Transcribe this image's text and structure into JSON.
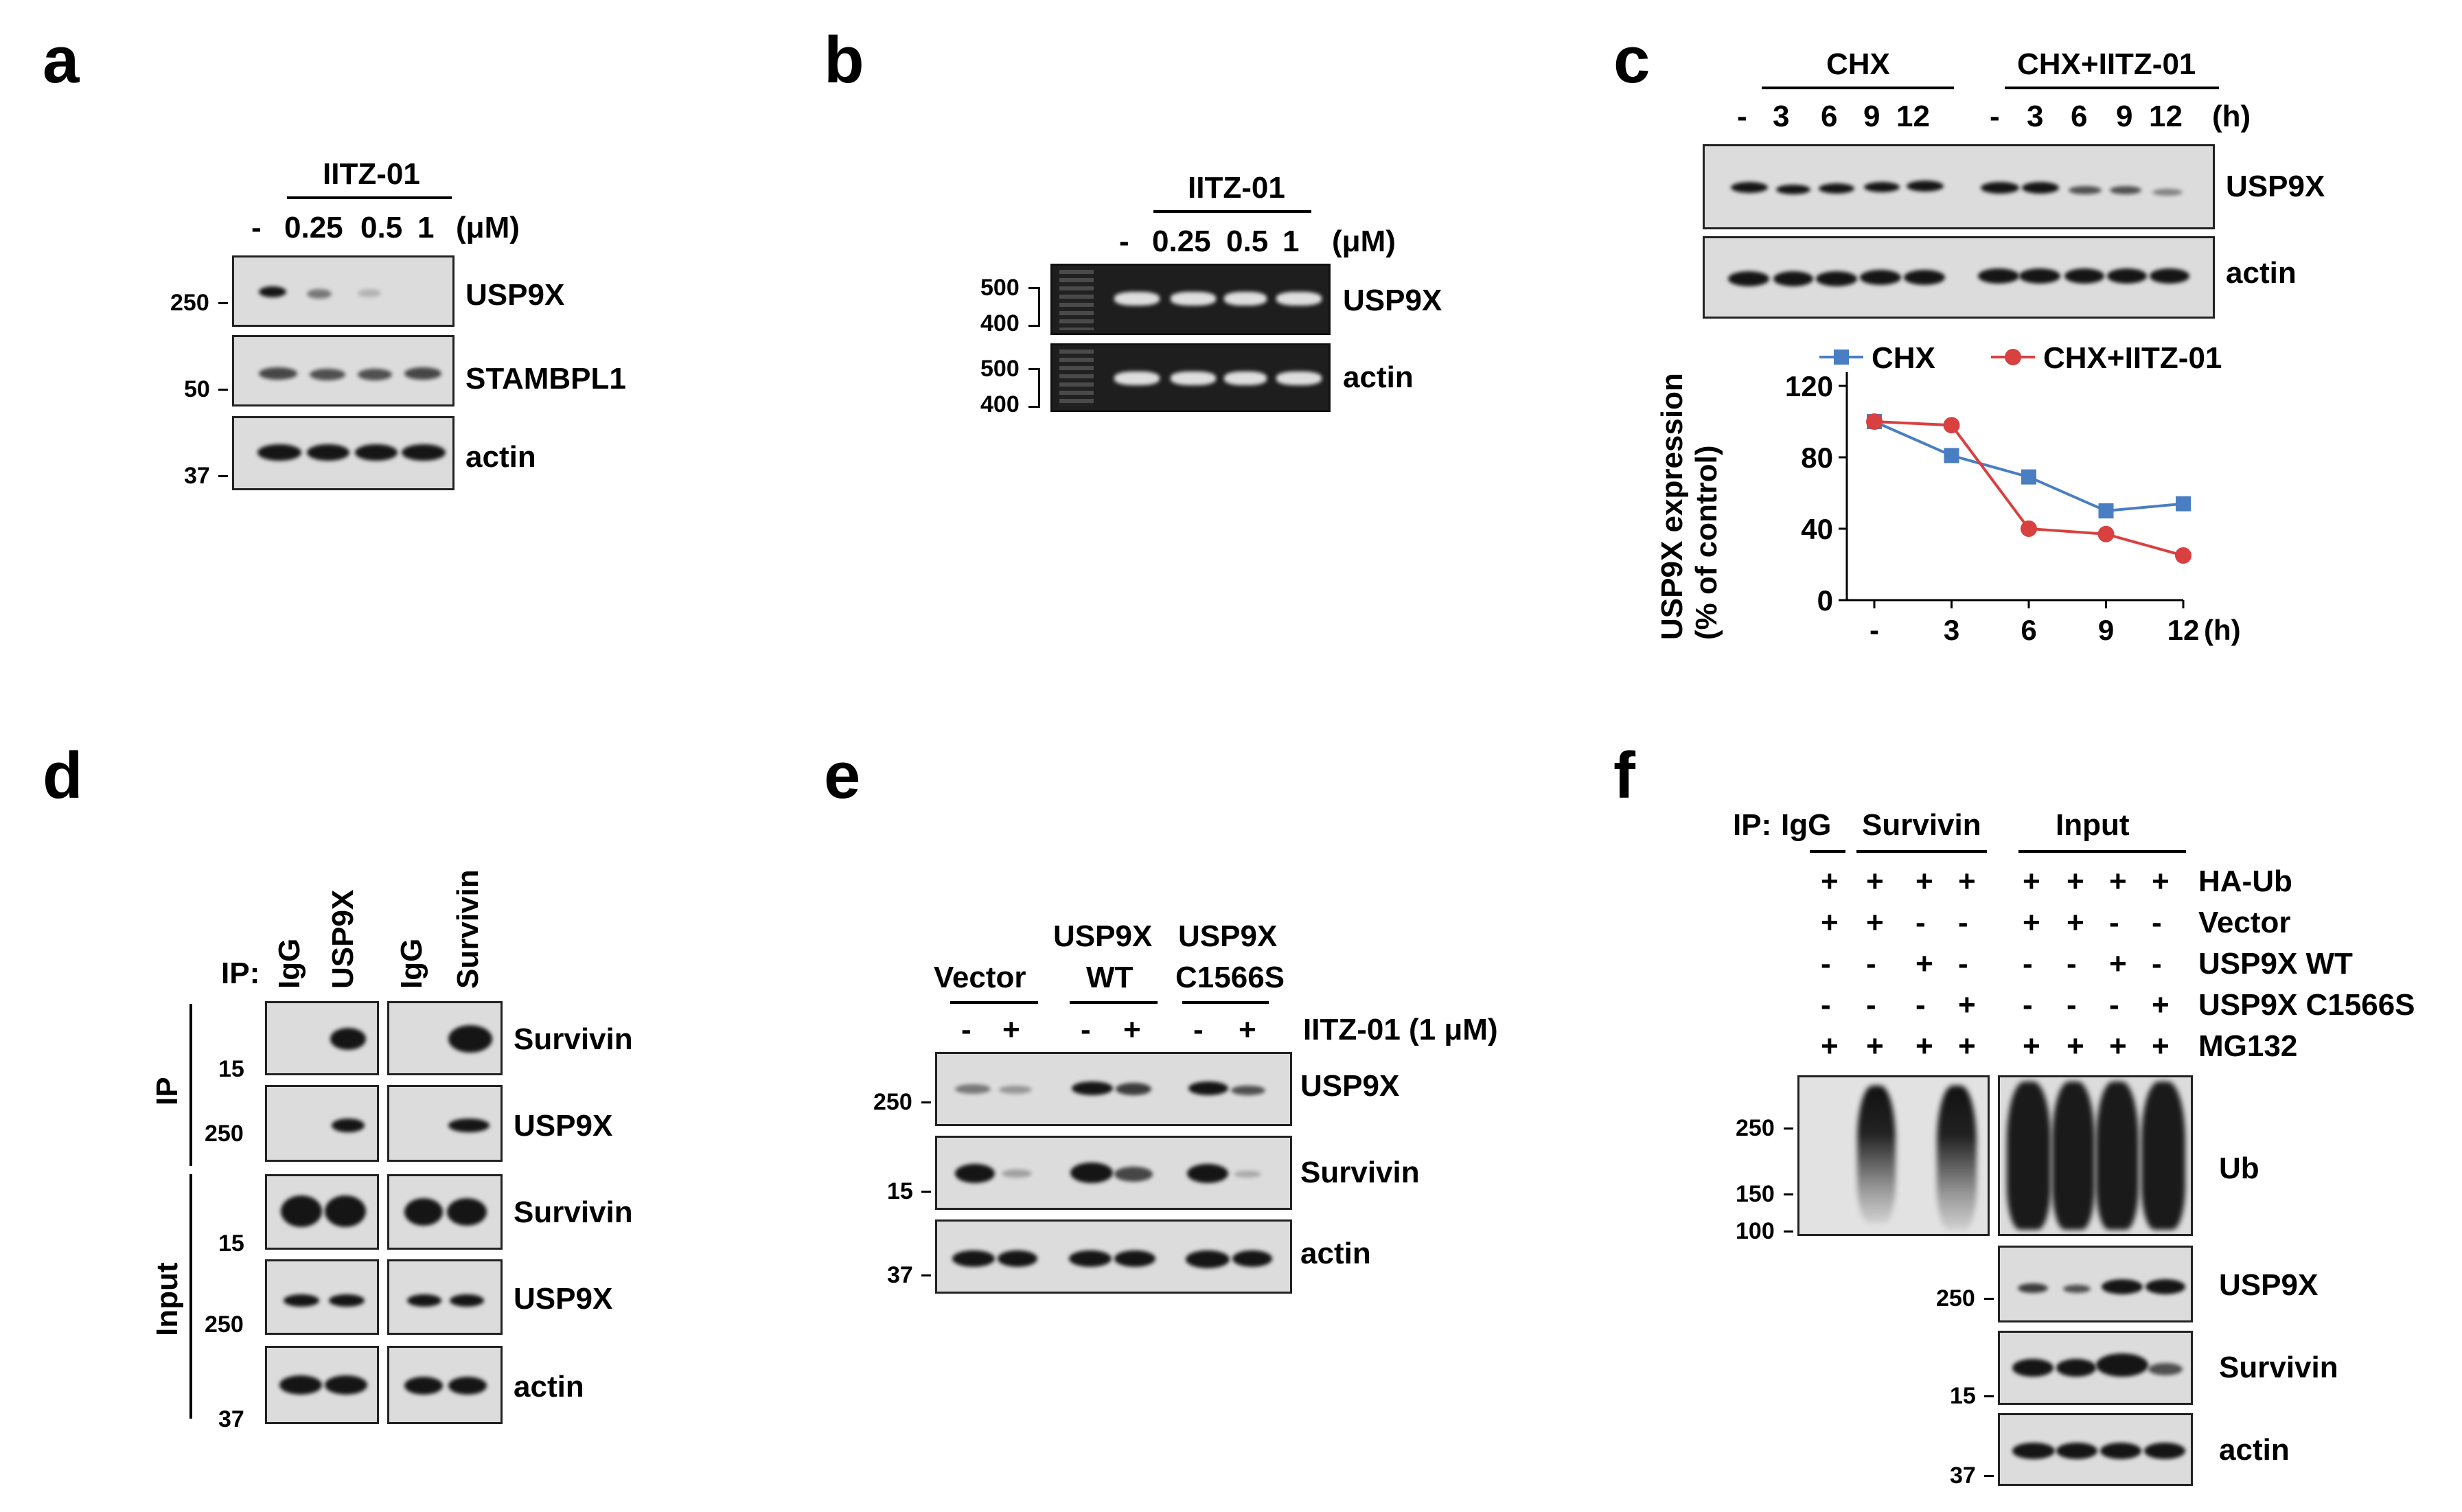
{
  "panels": {
    "a": {
      "letter": "a",
      "drug": "IITZ-01",
      "lanes": [
        "-",
        "0.25",
        "0.5",
        "1"
      ],
      "unit": "(μM)",
      "rows": [
        "USP9X",
        "STAMBPL1",
        "actin"
      ],
      "markers": [
        "250",
        "50",
        "37"
      ]
    },
    "b": {
      "letter": "b",
      "drug": "IITZ-01",
      "lanes": [
        "-",
        "0.25",
        "0.5",
        "1"
      ],
      "unit": "(μM)",
      "rows": [
        "USP9X",
        "actin"
      ],
      "markers": [
        "500",
        "400",
        "500",
        "400"
      ]
    },
    "c": {
      "letter": "c",
      "group1": "CHX",
      "group2": "CHX+IITZ-01",
      "lanes": [
        "-",
        "3",
        "6",
        "9",
        "12",
        "-",
        "3",
        "6",
        "9",
        "12"
      ],
      "unit": "(h)",
      "rows": [
        "USP9X",
        "actin"
      ]
    },
    "d": {
      "letter": "d",
      "ip_prefix": "IP:",
      "lanes": [
        "IgG",
        "USP9X",
        "IgG",
        "Survivin"
      ],
      "side_ip": "IP",
      "side_input": "Input",
      "rows": [
        "Survivin",
        "USP9X",
        "Survivin",
        "USP9X",
        "actin"
      ],
      "markers": [
        "15",
        "250",
        "15",
        "250",
        "37"
      ]
    },
    "e": {
      "letter": "e",
      "groups": [
        "Vector",
        "USP9X",
        "WT",
        "USP9X",
        "C1566S"
      ],
      "treatment": "IITZ-01 (1 μM)",
      "signs": [
        "-",
        "+",
        "-",
        "+",
        "-",
        "+"
      ],
      "rows": [
        "USP9X",
        "Survivin",
        "actin"
      ],
      "markers": [
        "250",
        "15",
        "37"
      ]
    },
    "f": {
      "letter": "f",
      "ip_prefix": "IP:",
      "groups": [
        "IgG",
        "Survivin",
        "Input"
      ],
      "conditions": [
        {
          "label": "HA-Ub",
          "signs": [
            "+",
            "+",
            "+",
            "+",
            "+",
            "+",
            "+",
            "+"
          ]
        },
        {
          "label": "Vector",
          "signs": [
            "+",
            "+",
            "-",
            "-",
            "+",
            "+",
            "-",
            "-"
          ]
        },
        {
          "label": "USP9X WT",
          "signs": [
            "-",
            "-",
            "+",
            "-",
            "-",
            "-",
            "+",
            "-"
          ]
        },
        {
          "label": "USP9X C1566S",
          "signs": [
            "-",
            "-",
            "-",
            "+",
            "-",
            "-",
            "-",
            "+"
          ]
        },
        {
          "label": "MG132",
          "signs": [
            "+",
            "+",
            "+",
            "+",
            "+",
            "+",
            "+",
            "+"
          ]
        }
      ],
      "rows": [
        "Ub",
        "USP9X",
        "Survivin",
        "actin"
      ],
      "markers": [
        "250",
        "150",
        "100",
        "250",
        "15",
        "37"
      ]
    }
  },
  "chart_data": {
    "type": "line",
    "ylabel_line1": "USP9X expression",
    "ylabel_line2": "(% of control)",
    "x": [
      "-",
      "3",
      "6",
      "9",
      "12"
    ],
    "x_unit": "(h)",
    "ylim": [
      0,
      120
    ],
    "yticks": [
      0,
      40,
      80,
      120
    ],
    "legend_position": "top",
    "series": [
      {
        "name": "CHX",
        "color": "#4a7ec2",
        "marker": "square",
        "values": [
          100,
          81,
          69,
          50,
          54
        ]
      },
      {
        "name": "CHX+IITZ-01",
        "color": "#d94040",
        "marker": "circle",
        "values": [
          100,
          98,
          40,
          37,
          25
        ]
      }
    ]
  }
}
